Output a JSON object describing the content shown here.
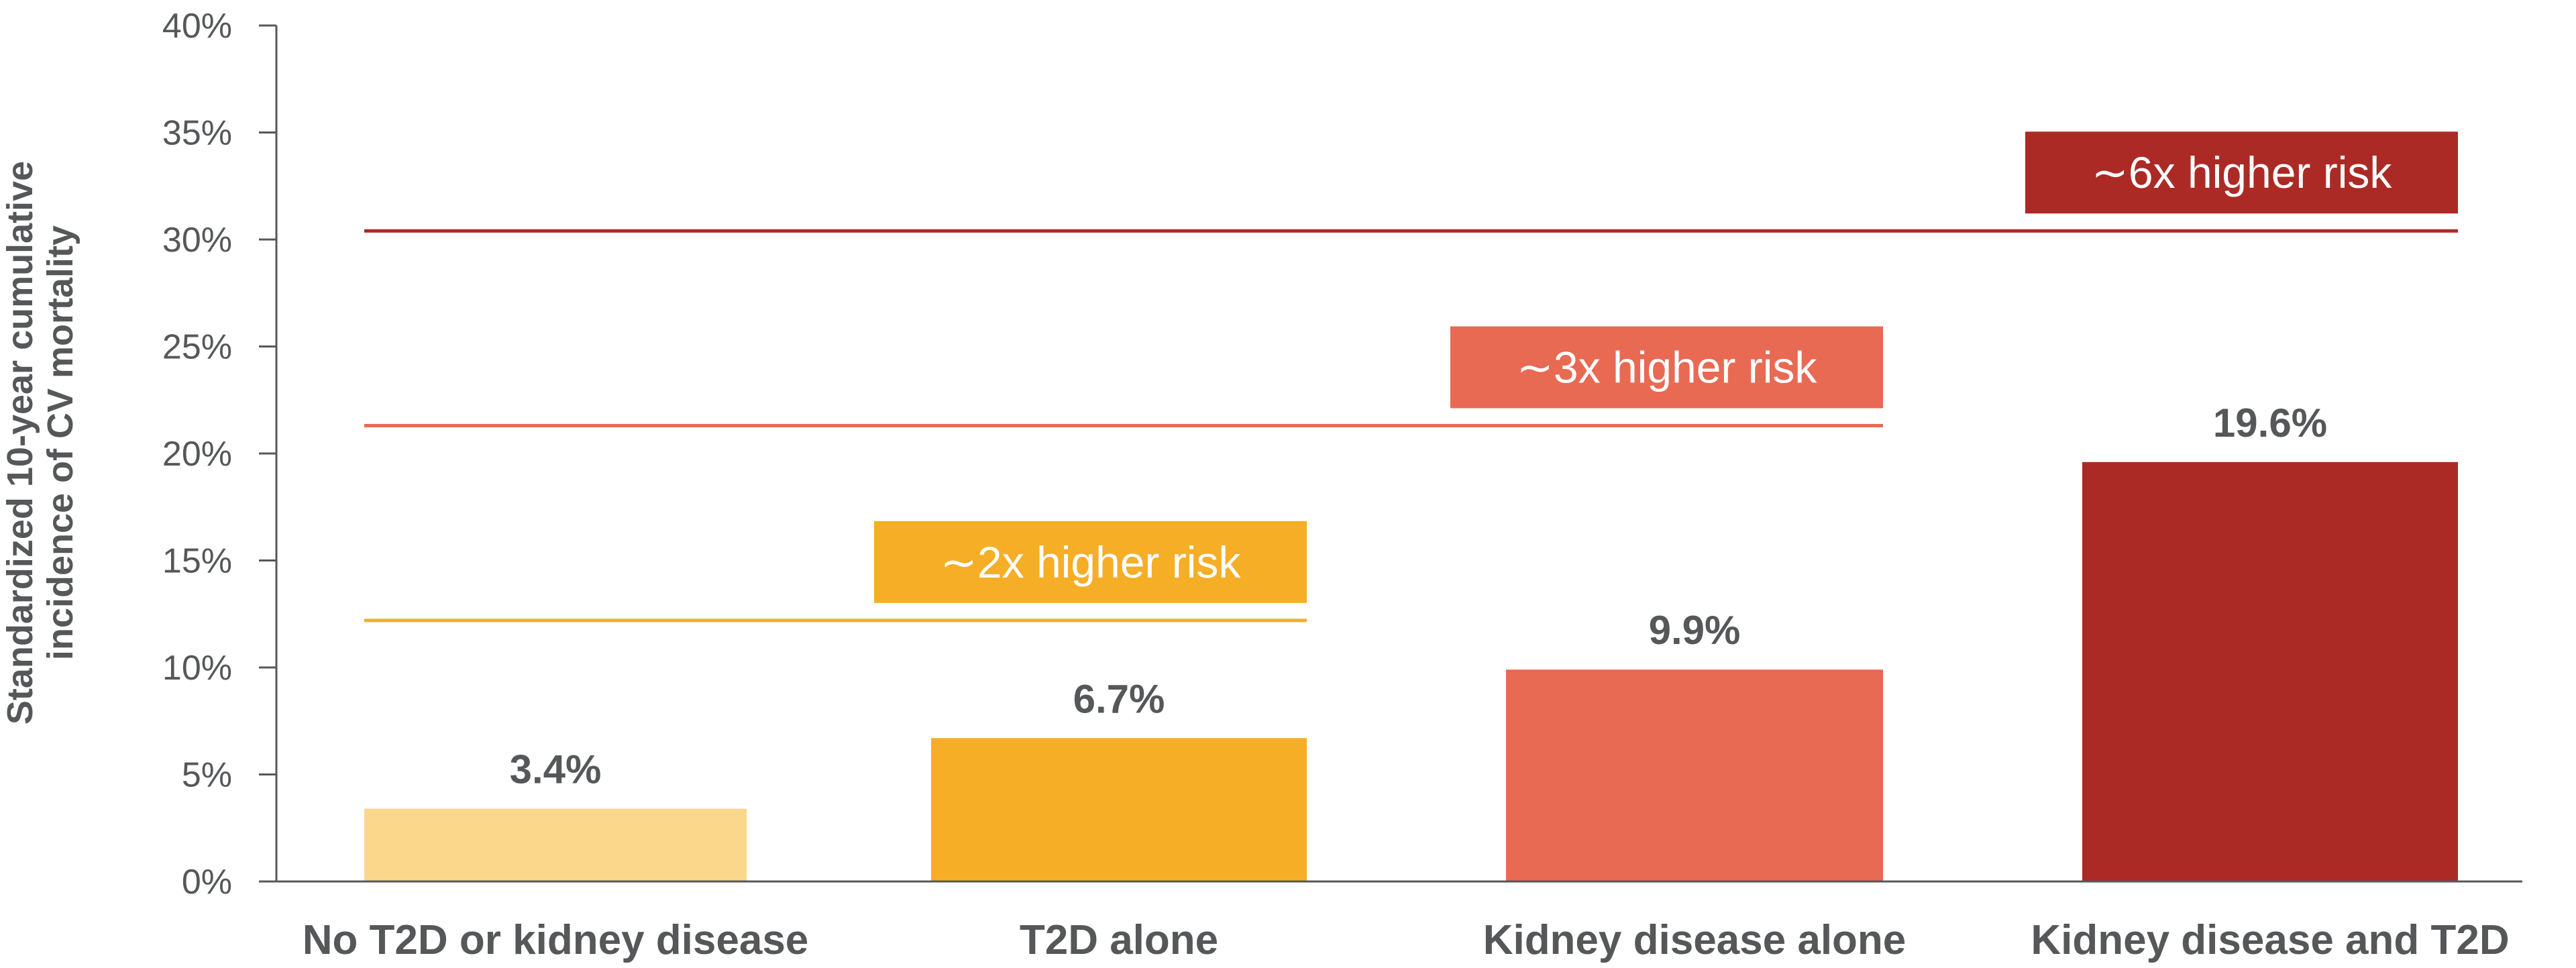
{
  "chart_data": {
    "type": "bar",
    "title": "",
    "xlabel": "",
    "ylabel_lines": [
      "Standardized 10-year cumulative",
      "incidence of CV mortality"
    ],
    "ylim": [
      0,
      40
    ],
    "yticks": [
      0,
      5,
      10,
      15,
      20,
      25,
      30,
      35,
      40
    ],
    "ytick_labels": [
      "0%",
      "5%",
      "10%",
      "15%",
      "20%",
      "25%",
      "30%",
      "35%",
      "40%"
    ],
    "categories": [
      "No T2D or kidney disease",
      "T2D alone",
      "Kidney disease alone",
      "Kidney disease and T2D"
    ],
    "values": [
      3.4,
      6.7,
      9.9,
      19.6
    ],
    "value_labels": [
      "3.4%",
      "6.7%",
      "9.9%",
      "19.6%"
    ],
    "bar_colors": [
      "#fad78a",
      "#f5ae26",
      "#e86a53",
      "#ac2a25"
    ],
    "reference_lines": [
      {
        "value": 12.2,
        "label": "∼2x higher risk",
        "color": "#f5ae26",
        "from_category": 0,
        "to_category": 1
      },
      {
        "value": 21.3,
        "label": "∼3x higher risk",
        "color": "#e86a53",
        "from_category": 0,
        "to_category": 2
      },
      {
        "value": 30.4,
        "label": "∼6x higher risk",
        "color": "#ac2a25",
        "from_category": 0,
        "to_category": 3
      }
    ],
    "axis_color": "#555759"
  }
}
